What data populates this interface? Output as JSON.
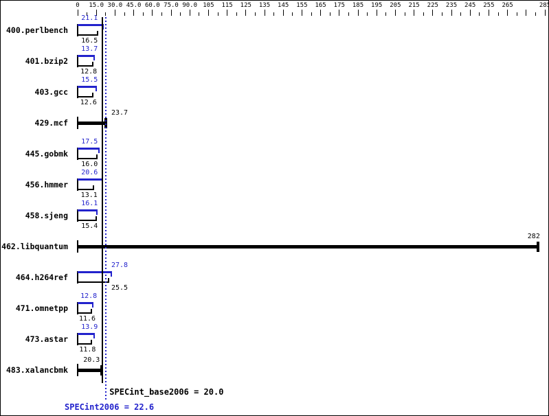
{
  "chart_data": {
    "type": "bar",
    "orientation": "horizontal",
    "categories": [
      "400.perlbench",
      "401.bzip2",
      "403.gcc",
      "429.mcf",
      "445.gobmk",
      "456.hmmer",
      "458.sjeng",
      "462.libquantum",
      "464.h264ref",
      "471.omnetpp",
      "473.astar",
      "483.xalancbmk"
    ],
    "series": [
      {
        "name": "SPECint2006",
        "color": "#2222cc",
        "values": [
          21.1,
          13.7,
          15.5,
          23.7,
          17.5,
          20.6,
          16.1,
          282,
          27.8,
          12.8,
          13.9,
          20.3
        ]
      },
      {
        "name": "SPECint_base2006",
        "color": "#000000",
        "values": [
          16.5,
          12.8,
          12.6,
          23.7,
          16.0,
          13.1,
          15.4,
          282,
          25.5,
          11.6,
          11.8,
          20.3
        ]
      }
    ],
    "benchmarks": [
      {
        "name": "400.perlbench",
        "peak": 21.1,
        "peak_label": "21.1",
        "base": 16.5,
        "base_label": "16.5"
      },
      {
        "name": "401.bzip2",
        "peak": 13.7,
        "peak_label": "13.7",
        "base": 12.8,
        "base_label": "12.8"
      },
      {
        "name": "403.gcc",
        "peak": 15.5,
        "peak_label": "15.5",
        "base": 12.6,
        "base_label": "12.6"
      },
      {
        "name": "429.mcf",
        "single": 23.7,
        "single_label": "23.7"
      },
      {
        "name": "445.gobmk",
        "peak": 17.5,
        "peak_label": "17.5",
        "base": 16.0,
        "base_label": "16.0"
      },
      {
        "name": "456.hmmer",
        "peak": 20.6,
        "peak_label": "20.6",
        "base": 13.1,
        "base_label": "13.1"
      },
      {
        "name": "458.sjeng",
        "peak": 16.1,
        "peak_label": "16.1",
        "base": 15.4,
        "base_label": "15.4"
      },
      {
        "name": "462.libquantum",
        "single": 282,
        "single_label": "282"
      },
      {
        "name": "464.h264ref",
        "peak": 27.8,
        "peak_label": "27.8",
        "base": 25.5,
        "base_label": "25.5"
      },
      {
        "name": "471.omnetpp",
        "peak": 12.8,
        "peak_label": "12.8",
        "base": 11.6,
        "base_label": "11.6"
      },
      {
        "name": "473.astar",
        "peak": 13.9,
        "peak_label": "13.9",
        "base": 11.8,
        "base_label": "11.8"
      },
      {
        "name": "483.xalancbmk",
        "single": 20.3,
        "single_label": "20.3"
      }
    ],
    "axis": {
      "position": "top",
      "ticks": [
        {
          "value": 0,
          "label": "0"
        },
        {
          "value": 15,
          "label": "15.0"
        },
        {
          "value": 30,
          "label": "30.0"
        },
        {
          "value": 45,
          "label": "45.0"
        },
        {
          "value": 60,
          "label": "60.0"
        },
        {
          "value": 75,
          "label": "75.0"
        },
        {
          "value": 90,
          "label": "90.0"
        },
        {
          "value": 105,
          "label": "105"
        },
        {
          "value": 115,
          "label": "115"
        },
        {
          "value": 125,
          "label": "125"
        },
        {
          "value": 135,
          "label": "135"
        },
        {
          "value": 145,
          "label": "145"
        },
        {
          "value": 155,
          "label": "155"
        },
        {
          "value": 165,
          "label": "165"
        },
        {
          "value": 175,
          "label": "175"
        },
        {
          "value": 185,
          "label": "185"
        },
        {
          "value": 195,
          "label": "195"
        },
        {
          "value": 205,
          "label": "205"
        },
        {
          "value": 215,
          "label": "215"
        },
        {
          "value": 225,
          "label": "225"
        },
        {
          "value": 235,
          "label": "235"
        },
        {
          "value": 245,
          "label": "245"
        },
        {
          "value": 255,
          "label": "255"
        },
        {
          "value": 265,
          "label": "265"
        },
        {
          "value": 275,
          "label": ""
        },
        {
          "value": 285,
          "label": "285"
        }
      ]
    },
    "reference_lines": {
      "base": {
        "value": 20.0,
        "label": "SPECint_base2006 = 20.0",
        "color": "#000000",
        "style": "solid"
      },
      "peak": {
        "value": 22.6,
        "label": "SPECint2006 = 22.6",
        "color": "#2222cc",
        "style": "dotted"
      }
    },
    "colors": {
      "peak": "#2222cc",
      "base": "#000000",
      "background": "#ffffff"
    }
  }
}
